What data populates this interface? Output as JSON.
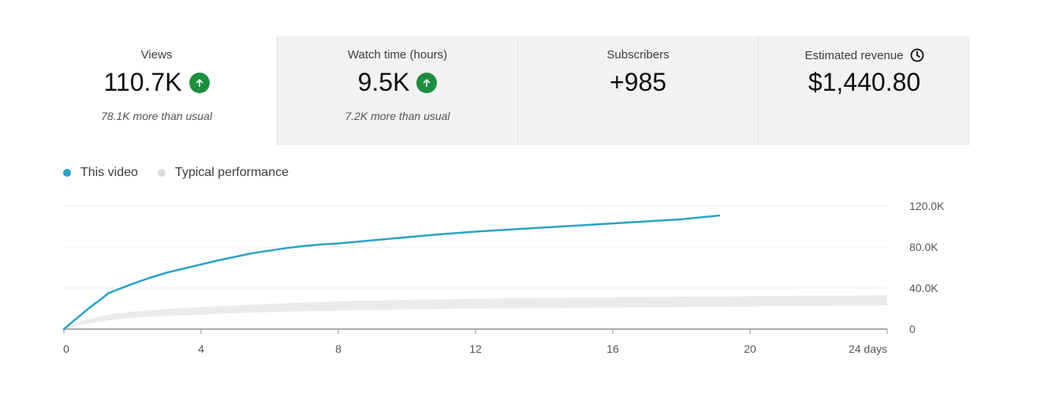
{
  "metrics": [
    {
      "label": "Views",
      "value": "110.7K",
      "note": "78.1K more than usual",
      "icon": "arrow-up-icon"
    },
    {
      "label": "Watch time (hours)",
      "value": "9.5K",
      "note": "7.2K more than usual",
      "icon": "arrow-up-icon"
    },
    {
      "label": "Subscribers",
      "value": "+985",
      "note": "",
      "icon": ""
    },
    {
      "label": "Estimated revenue",
      "value": "$1,440.80",
      "note": "",
      "icon": "clock-icon"
    }
  ],
  "colors": {
    "this_video": "#2aa3c3",
    "typical": "#dcdcdc",
    "typical_band": "#ebebeb",
    "up_badge": "#1e8e3e",
    "panel": "#f2f2f2"
  },
  "chart_data": {
    "type": "line",
    "legend": [
      "This video",
      "Typical performance"
    ],
    "legend_position": "top-left",
    "x_ticks": [
      "0",
      "4",
      "8",
      "12",
      "16",
      "20",
      "24 days"
    ],
    "y_ticks": [
      "0",
      "40.0K",
      "80.0K",
      "120.0K"
    ],
    "xlim": [
      0,
      24
    ],
    "ylim": [
      0,
      120000
    ],
    "grid": true,
    "y_axis_side": "right",
    "series": [
      {
        "name": "This video",
        "x": [
          0,
          0.25,
          0.5,
          0.75,
          1,
          1.3,
          1.6,
          2,
          2.5,
          3,
          3.5,
          4,
          4.5,
          5,
          5.5,
          6,
          6.5,
          7,
          7.5,
          8,
          9,
          10,
          11,
          12,
          13,
          14,
          15,
          16,
          17,
          18,
          19.1
        ],
        "y": [
          0,
          7000,
          14000,
          21000,
          27000,
          35000,
          39000,
          44000,
          50000,
          55000,
          59000,
          63000,
          67000,
          70500,
          74000,
          76500,
          79000,
          81000,
          82500,
          83500,
          86500,
          89500,
          92500,
          95000,
          97000,
          99000,
          101000,
          103000,
          105000,
          107000,
          110700
        ]
      },
      {
        "name": "Typical performance",
        "type": "area",
        "x": [
          0,
          0.5,
          1,
          1.5,
          2,
          3,
          4,
          5,
          6,
          7,
          8,
          10,
          12,
          14,
          16,
          18,
          20,
          22,
          24
        ],
        "y_low": [
          0,
          4000,
          7000,
          9000,
          11000,
          13000,
          14000,
          15500,
          16500,
          17500,
          18000,
          19000,
          20000,
          20500,
          21000,
          21500,
          22000,
          22500,
          23000
        ],
        "y_high": [
          0,
          8000,
          12000,
          15000,
          17000,
          19500,
          21500,
          23000,
          24500,
          26000,
          27000,
          28500,
          29500,
          30500,
          31000,
          31500,
          32000,
          32500,
          33000
        ]
      }
    ]
  }
}
